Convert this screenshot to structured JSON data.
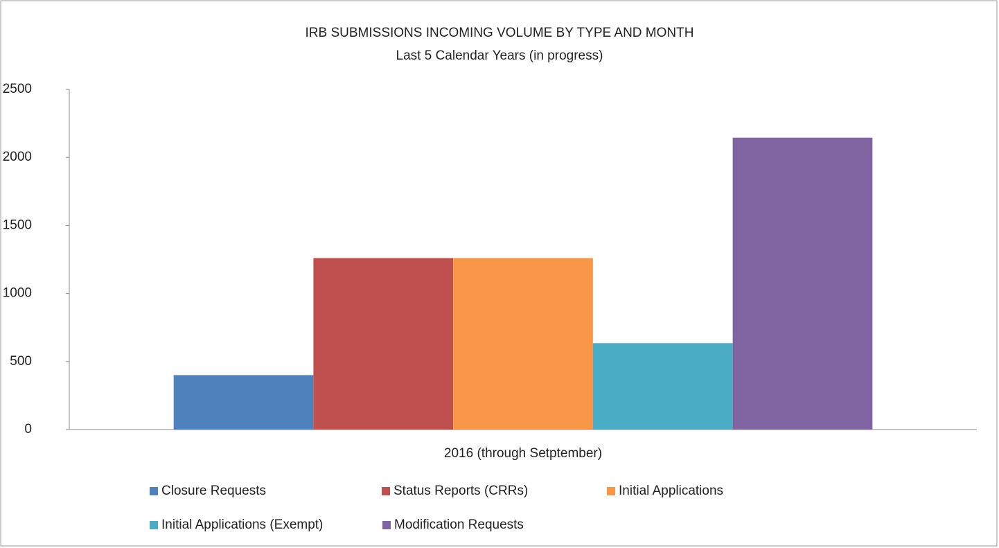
{
  "chart_data": {
    "type": "bar",
    "title": "IRB SUBMISSIONS INCOMING VOLUME BY TYPE AND MONTH",
    "subtitle": "Last 5 Calendar Years (in progress)",
    "categories": [
      "2016 (through Setptember)"
    ],
    "series": [
      {
        "name": "Closure Requests",
        "color": "#4f81bd",
        "values": [
          400
        ]
      },
      {
        "name": "Status Reports (CRRs)",
        "color": "#c0504d",
        "values": [
          1260
        ]
      },
      {
        "name": "Initial Applications",
        "color": "#f79646",
        "values": [
          1260
        ]
      },
      {
        "name": "Initial Applications (Exempt)",
        "color": "#4bacc6",
        "values": [
          635
        ]
      },
      {
        "name": "Modification Requests",
        "color": "#8064a2",
        "values": [
          2145
        ]
      }
    ],
    "ylim": [
      0,
      2500
    ],
    "yticks": [
      0,
      500,
      1000,
      1500,
      2000,
      2500
    ],
    "grid": false,
    "legend": "bottom"
  }
}
